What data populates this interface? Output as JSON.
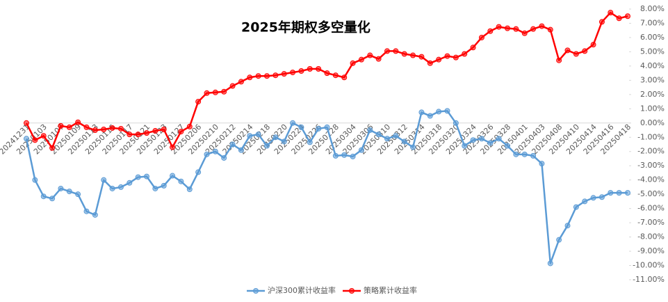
{
  "chart_data": {
    "type": "line",
    "title": "2025年期权多空量化",
    "categories": [
      "20241231",
      null,
      "20250103",
      null,
      "20250107",
      null,
      "20250109",
      null,
      "20250113",
      null,
      "20250115",
      null,
      "20250117",
      null,
      "20250121",
      null,
      "20250123",
      null,
      "20250127",
      null,
      "20250206",
      null,
      "20250210",
      null,
      "20250212",
      null,
      "20250214",
      null,
      "20250218",
      null,
      "20250220",
      null,
      "20250224",
      null,
      "20250226",
      null,
      "20250228",
      null,
      "20250304",
      null,
      "20250306",
      null,
      "20250310",
      null,
      "20250312",
      null,
      "20250314",
      null,
      "20250318",
      null,
      "20250320",
      null,
      "20250324",
      null,
      "20250326",
      null,
      "20250328",
      null,
      "20250401",
      null,
      "20250403",
      null,
      "20250408",
      null,
      "20250410",
      null,
      "20250414",
      null,
      "20250416",
      null,
      "20250418"
    ],
    "series": [
      {
        "name": "沪深300累计收益率",
        "color": "#5b9bd5",
        "values": [
          -1.1,
          -4.0,
          -5.15,
          -5.3,
          -4.6,
          -4.8,
          -5.0,
          -6.2,
          -6.45,
          -4.0,
          -4.6,
          -4.5,
          -4.2,
          -3.8,
          -3.75,
          -4.6,
          -4.4,
          -3.7,
          -4.1,
          -4.65,
          -3.45,
          -2.2,
          -2.0,
          -2.45,
          -1.5,
          -1.9,
          -0.9,
          -0.8,
          -1.6,
          -1.0,
          -1.3,
          0.0,
          -0.3,
          -1.35,
          -0.4,
          -0.3,
          -2.3,
          -2.25,
          -2.35,
          -1.9,
          -0.5,
          -0.8,
          -1.1,
          -0.9,
          -1.3,
          -1.7,
          0.75,
          0.5,
          0.8,
          0.85,
          0.0,
          -1.6,
          -1.2,
          -1.1,
          -1.4,
          -1.1,
          -1.6,
          -2.2,
          -2.2,
          -2.3,
          -2.85,
          -9.85,
          -8.2,
          -7.2,
          -5.9,
          -5.5,
          -5.25,
          -5.2,
          -4.9,
          -4.9,
          -4.9
        ]
      },
      {
        "name": "策略累计收益率",
        "color": "#ff0000",
        "values": [
          0.0,
          -1.2,
          -0.9,
          -1.75,
          -0.2,
          -0.3,
          0.05,
          -0.3,
          -0.5,
          -0.45,
          -0.35,
          -0.4,
          -0.8,
          -0.8,
          -0.7,
          -0.55,
          -0.45,
          -1.7,
          -0.6,
          -0.25,
          1.5,
          2.1,
          2.15,
          2.2,
          2.6,
          2.9,
          3.2,
          3.3,
          3.3,
          3.35,
          3.45,
          3.55,
          3.65,
          3.8,
          3.8,
          3.5,
          3.35,
          3.2,
          4.2,
          4.45,
          4.75,
          4.5,
          5.05,
          5.05,
          4.85,
          4.75,
          4.65,
          4.2,
          4.45,
          4.7,
          4.6,
          4.85,
          5.3,
          6.0,
          6.45,
          6.75,
          6.65,
          6.6,
          6.3,
          6.6,
          6.8,
          6.55,
          4.4,
          5.1,
          4.85,
          5.05,
          5.5,
          7.1,
          7.75,
          7.35,
          7.5
        ]
      }
    ],
    "ylim": [
      -11,
      8
    ],
    "yticks": [
      {
        "value": 8,
        "label": "8.00%"
      },
      {
        "value": 7,
        "label": "7.00%"
      },
      {
        "value": 6,
        "label": "6.00%"
      },
      {
        "value": 5,
        "label": "5.00%"
      },
      {
        "value": 4,
        "label": "4.00%"
      },
      {
        "value": 3,
        "label": "3.00%"
      },
      {
        "value": 2,
        "label": "2.00%"
      },
      {
        "value": 1,
        "label": "1.00%"
      },
      {
        "value": 0,
        "label": "0.00%"
      },
      {
        "value": -1,
        "label": "-1.00%"
      },
      {
        "value": -2,
        "label": "-2.00%"
      },
      {
        "value": -3,
        "label": "-3.00%"
      },
      {
        "value": -4,
        "label": "-4.00%"
      },
      {
        "value": -5,
        "label": "-5.00%"
      },
      {
        "value": -6,
        "label": "-6.00%"
      },
      {
        "value": -7,
        "label": "-7.00%"
      },
      {
        "value": -8,
        "label": "-8.00%"
      },
      {
        "value": -9,
        "label": "-9.00%"
      },
      {
        "value": -10,
        "label": "-10.00%"
      },
      {
        "value": -11,
        "label": "-11.00%"
      }
    ],
    "legend": "bottom"
  }
}
